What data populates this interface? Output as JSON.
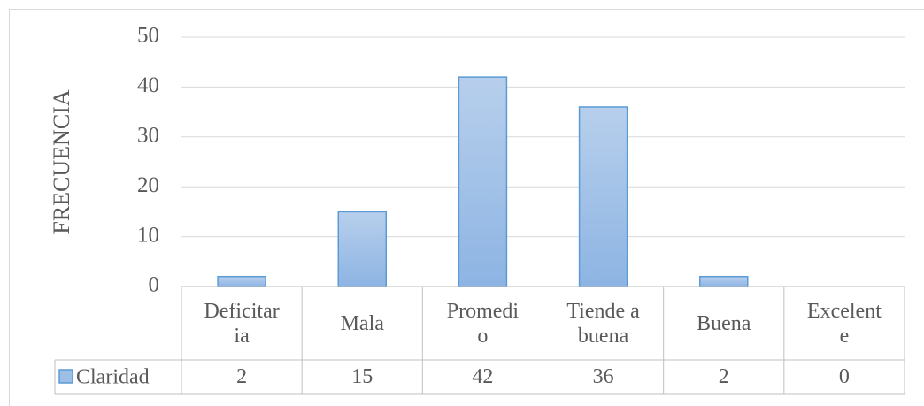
{
  "chart_data": {
    "type": "bar",
    "y_label": "FRECUENCIA",
    "categories": [
      "Deficitaria",
      "Mala",
      "Promedio",
      "Tiende a buena",
      "Buena",
      "Excelente"
    ],
    "series": [
      {
        "name": "Claridad",
        "color": "#5b9bd5",
        "values": [
          2,
          15,
          42,
          36,
          2,
          0
        ]
      }
    ],
    "ylim": [
      0,
      50
    ],
    "yticks": [
      0,
      10,
      20,
      30,
      40,
      50
    ],
    "grid": true,
    "data_table": true
  }
}
